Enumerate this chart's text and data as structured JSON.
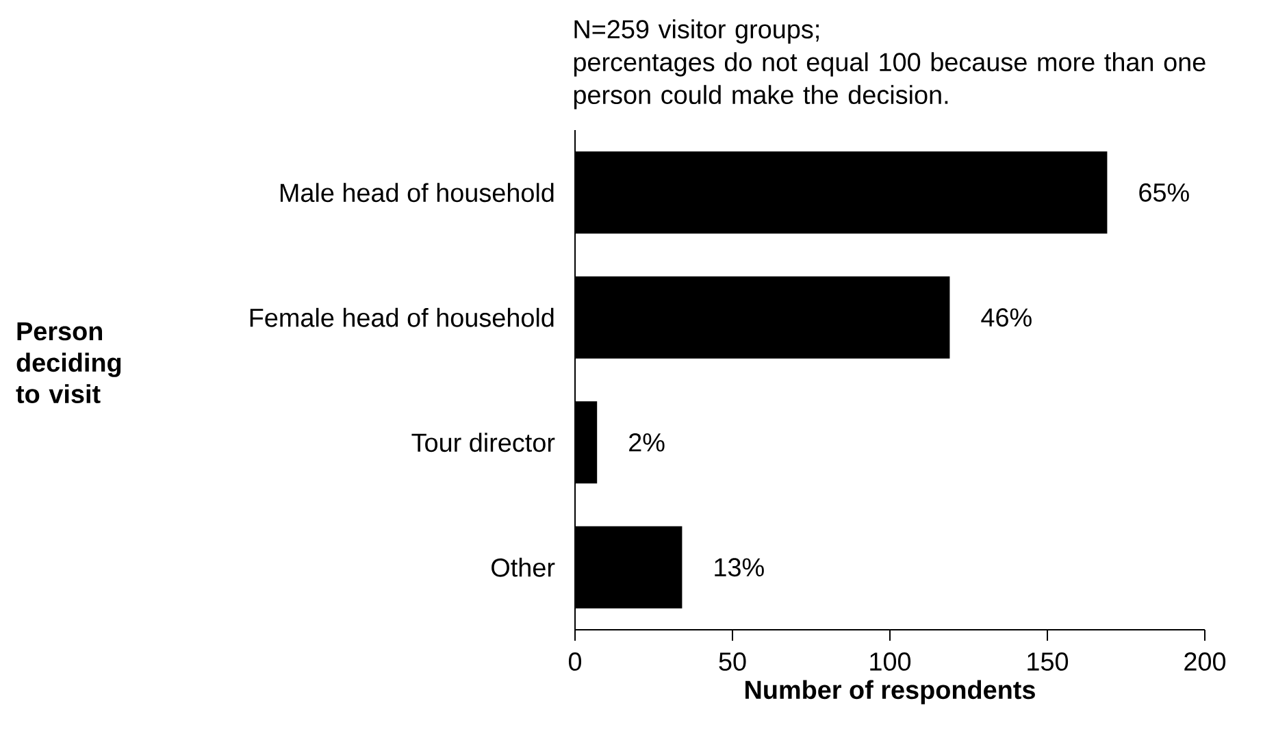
{
  "chart_data": {
    "type": "bar",
    "orientation": "horizontal",
    "annotations": [
      "N=259 visitor groups;",
      "percentages do not equal 100 because more than one person could make the decision.",
      "Person deciding to visit",
      {
        "text": "65%",
        "x": 169,
        "y": "Male head of household"
      },
      {
        "text": "46%",
        "x": 119,
        "y": "Female head of household"
      },
      {
        "text": "2%",
        "x": 7,
        "y": "Tour director"
      },
      {
        "text": "13%",
        "x": 34,
        "y": "Other"
      }
    ],
    "categories": [
      "Male head of household",
      "Female head of household",
      "Tour director",
      "Other"
    ],
    "values": [
      169,
      119,
      7,
      34
    ],
    "color": "#000000",
    "xlim": [
      0,
      200
    ],
    "xticks": [
      0,
      50,
      100,
      150,
      200
    ],
    "xlabel": "Number of respondents"
  }
}
